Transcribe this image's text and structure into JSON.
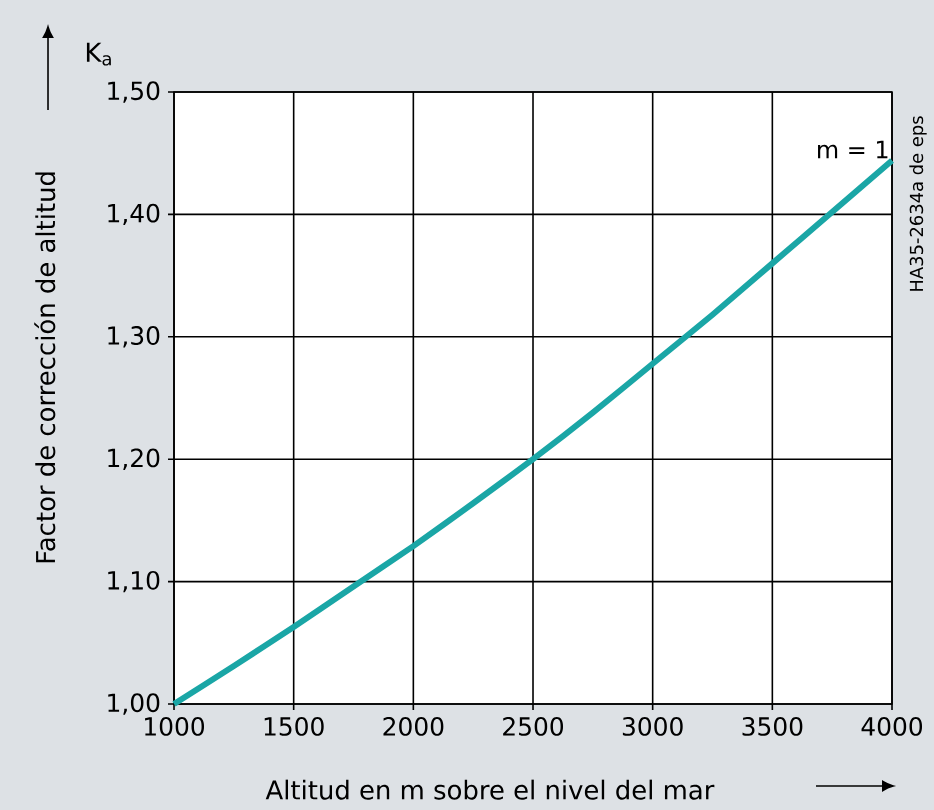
{
  "chart_data": {
    "type": "line",
    "xlabel": "Altitud en m sobre el nivel del mar",
    "ylabel": "Factor de corrección de altitud",
    "annotations": [
      "K$_{a}$",
      "HA35-2634a de eps"
    ],
    "x": [
      1000,
      1250,
      1500,
      1750,
      2000,
      2250,
      2500,
      2750,
      3000,
      3250,
      3500,
      3750,
      4000
    ],
    "series": [
      {
        "name": "m = 1",
        "color": "#1aa6a6",
        "values": [
          1.0,
          1.031,
          1.063,
          1.096,
          1.129,
          1.164,
          1.2,
          1.238,
          1.278,
          1.318,
          1.36,
          1.402,
          1.444
        ]
      }
    ],
    "xlim": [
      1000,
      4000
    ],
    "xticks": [
      1000,
      1500,
      2000,
      2500,
      3000,
      3500,
      4000
    ],
    "ylim": [
      1.0,
      1.5
    ],
    "yticks": [
      {
        "value": 1.0,
        "label": "1,00"
      },
      {
        "value": 1.1,
        "label": "1,10"
      },
      {
        "value": 1.2,
        "label": "1,20"
      },
      {
        "value": 1.3,
        "label": "1,30"
      },
      {
        "value": 1.4,
        "label": "1,40"
      },
      {
        "value": 1.5,
        "label": "1,50"
      }
    ],
    "grid": true
  }
}
